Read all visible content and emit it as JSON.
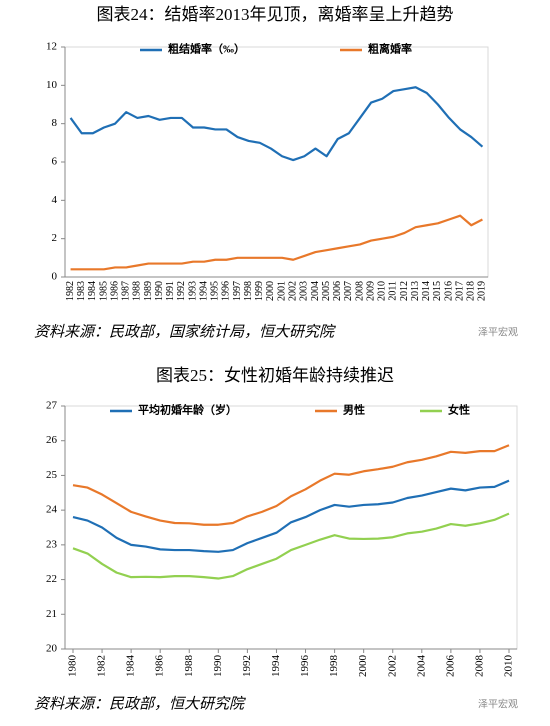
{
  "watermark": "泽平宏观",
  "chart_data": [
    {
      "type": "line",
      "title": "图表24：结婚率2013年见顶，离婚率呈上升趋势",
      "source": "资料来源：民政部，国家统计局，恒大研究院",
      "categories": [
        "1982",
        "1983",
        "1984",
        "1985",
        "1986",
        "1987",
        "1988",
        "1989",
        "1990",
        "1991",
        "1992",
        "1993",
        "1994",
        "1995",
        "1996",
        "1997",
        "1998",
        "1999",
        "2000",
        "2001",
        "2002",
        "2003",
        "2004",
        "2005",
        "2006",
        "2007",
        "2008",
        "2009",
        "2010",
        "2011",
        "2012",
        "2013",
        "2014",
        "2015",
        "2016",
        "2017",
        "2018",
        "2019"
      ],
      "ylim": [
        0,
        12
      ],
      "yticks": [
        0,
        2,
        4,
        6,
        8,
        10,
        12
      ],
      "grid": false,
      "series": [
        {
          "name": "粗结婚率（‰）",
          "color": "#1f6fb5",
          "values": [
            8.3,
            7.5,
            7.5,
            7.8,
            8.0,
            8.6,
            8.3,
            8.4,
            8.2,
            8.3,
            8.3,
            7.8,
            7.8,
            7.7,
            7.7,
            7.3,
            7.1,
            7.0,
            6.7,
            6.3,
            6.1,
            6.3,
            6.7,
            6.3,
            7.2,
            7.5,
            8.3,
            9.1,
            9.3,
            9.7,
            9.8,
            9.9,
            9.6,
            9.0,
            8.3,
            7.7,
            7.3,
            6.8
          ]
        },
        {
          "name": "粗离婚率",
          "color": "#e8782a",
          "values": [
            0.4,
            0.4,
            0.4,
            0.4,
            0.5,
            0.5,
            0.6,
            0.7,
            0.7,
            0.7,
            0.7,
            0.8,
            0.8,
            0.9,
            0.9,
            1.0,
            1.0,
            1.0,
            1.0,
            1.0,
            0.9,
            1.1,
            1.3,
            1.4,
            1.5,
            1.6,
            1.7,
            1.9,
            2.0,
            2.1,
            2.3,
            2.6,
            2.7,
            2.8,
            3.0,
            3.2,
            2.7,
            3.0
          ]
        }
      ]
    },
    {
      "type": "line",
      "title": "图表25：女性初婚年龄持续推迟",
      "source": "资料来源：民政部，恒大研究院",
      "x": [
        1980,
        1981,
        1982,
        1983,
        1984,
        1985,
        1986,
        1987,
        1988,
        1989,
        1990,
        1991,
        1992,
        1993,
        1994,
        1995,
        1996,
        1997,
        1998,
        1999,
        2000,
        2001,
        2002,
        2003,
        2004,
        2005,
        2006,
        2007,
        2008,
        2009,
        2010
      ],
      "xlim": [
        1980,
        2010
      ],
      "xticks": [
        1980,
        1982,
        1984,
        1986,
        1988,
        1990,
        1992,
        1994,
        1996,
        1998,
        2000,
        2002,
        2004,
        2006,
        2008,
        2010
      ],
      "ylim": [
        20,
        27
      ],
      "yticks": [
        20,
        21,
        22,
        23,
        24,
        25,
        26,
        27
      ],
      "grid": false,
      "series": [
        {
          "name": "平均初婚年龄（岁）",
          "color": "#1f6fb5",
          "values": [
            23.8,
            23.7,
            23.5,
            23.2,
            23.0,
            22.95,
            22.87,
            22.85,
            22.85,
            22.82,
            22.8,
            22.85,
            23.05,
            23.2,
            23.35,
            23.65,
            23.8,
            24.0,
            24.15,
            24.1,
            24.15,
            24.17,
            24.22,
            24.35,
            24.42,
            24.52,
            24.62,
            24.57,
            24.65,
            24.67,
            24.85
          ]
        },
        {
          "name": "男性",
          "color": "#e8782a",
          "values": [
            24.72,
            24.65,
            24.45,
            24.2,
            23.95,
            23.82,
            23.7,
            23.63,
            23.62,
            23.58,
            23.58,
            23.63,
            23.82,
            23.95,
            24.12,
            24.4,
            24.6,
            24.85,
            25.05,
            25.02,
            25.12,
            25.18,
            25.25,
            25.38,
            25.45,
            25.55,
            25.68,
            25.65,
            25.7,
            25.7,
            25.87
          ]
        },
        {
          "name": "女性",
          "color": "#92d050",
          "values": [
            22.9,
            22.75,
            22.45,
            22.2,
            22.07,
            22.08,
            22.07,
            22.1,
            22.1,
            22.07,
            22.03,
            22.1,
            22.3,
            22.45,
            22.6,
            22.85,
            23.0,
            23.15,
            23.28,
            23.18,
            23.17,
            23.18,
            23.22,
            23.33,
            23.38,
            23.47,
            23.6,
            23.55,
            23.62,
            23.72,
            23.9
          ]
        }
      ]
    }
  ]
}
